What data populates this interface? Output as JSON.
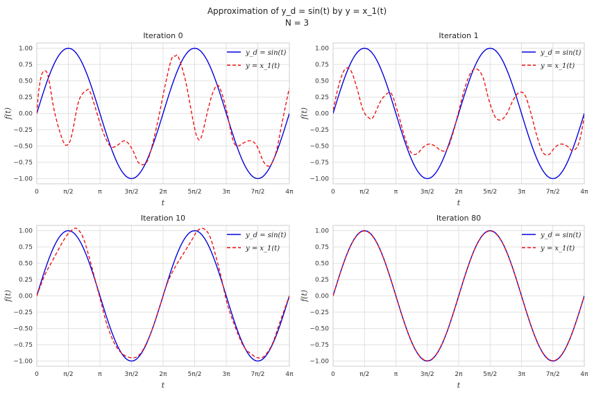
{
  "figure": {
    "title_line1": "Approximation of y_d = sin(t) by y = x_1(t)",
    "title_line2": "N = 3"
  },
  "colors": {
    "target": "#0000dd",
    "approx": "#ee1111",
    "grid": "#d9d9d9"
  },
  "chart_data": [
    {
      "type": "line",
      "title": "Iteration 0",
      "xlabel": "t",
      "ylabel": "f(t)",
      "xlim": [
        0,
        12.566
      ],
      "ylim": [
        -1.08,
        1.08
      ],
      "xticks": [
        0,
        1.5708,
        3.1416,
        4.7124,
        6.2832,
        7.854,
        9.4248,
        10.9956,
        12.5664
      ],
      "xtick_labels": [
        "0",
        "π/2",
        "π",
        "3π/2",
        "2π",
        "5π/2",
        "3π",
        "7π/2",
        "4π"
      ],
      "yticks": [
        -1.0,
        -0.75,
        -0.5,
        -0.25,
        0.0,
        0.25,
        0.5,
        0.75,
        1.0
      ],
      "ytick_labels": [
        "−1.00",
        "−0.75",
        "−0.50",
        "−0.25",
        "0.00",
        "0.25",
        "0.50",
        "0.75",
        "1.00"
      ],
      "legend_position": "top-right",
      "series": [
        {
          "name": "y_d = sin(t)",
          "style": "solid",
          "func": "sin"
        },
        {
          "name": "y = x_1(t)",
          "style": "dashed",
          "x": [
            0,
            0.1,
            0.25,
            0.45,
            0.6,
            0.9,
            1.3,
            1.55,
            1.75,
            2.1,
            2.5,
            2.65,
            2.85,
            3.2,
            3.5,
            3.75,
            4.05,
            4.4,
            4.75,
            5.05,
            5.35,
            5.6,
            6.0,
            6.4,
            6.7,
            6.9,
            7.05,
            7.4,
            7.8,
            8.0,
            8.2,
            8.55,
            8.8,
            9.05,
            9.4,
            9.75,
            10.0,
            10.3,
            10.65,
            10.95,
            11.3,
            11.6,
            11.9,
            12.2,
            12.5,
            12.566
          ],
          "y": [
            0.0,
            0.35,
            0.6,
            0.65,
            0.52,
            0.0,
            -0.42,
            -0.48,
            -0.32,
            0.2,
            0.36,
            0.33,
            0.15,
            -0.2,
            -0.43,
            -0.52,
            -0.48,
            -0.42,
            -0.55,
            -0.75,
            -0.78,
            -0.65,
            -0.15,
            0.45,
            0.83,
            0.88,
            0.86,
            0.5,
            -0.15,
            -0.38,
            -0.35,
            0.1,
            0.35,
            0.42,
            0.1,
            -0.4,
            -0.5,
            -0.45,
            -0.42,
            -0.5,
            -0.75,
            -0.8,
            -0.6,
            -0.15,
            0.3,
            0.38
          ]
        }
      ]
    },
    {
      "type": "line",
      "title": "Iteration 1",
      "xlabel": "t",
      "ylabel": "f(t)",
      "xlim": [
        0,
        12.566
      ],
      "ylim": [
        -1.08,
        1.08
      ],
      "xticks": [
        0,
        1.5708,
        3.1416,
        4.7124,
        6.2832,
        7.854,
        9.4248,
        10.9956,
        12.5664
      ],
      "xtick_labels": [
        "0",
        "π/2",
        "π",
        "3π/2",
        "2π",
        "5π/2",
        "3π",
        "7π/2",
        "4π"
      ],
      "yticks": [
        -1.0,
        -0.75,
        -0.5,
        -0.25,
        0.0,
        0.25,
        0.5,
        0.75,
        1.0
      ],
      "ytick_labels": [
        "−1.00",
        "−0.75",
        "−0.50",
        "−0.25",
        "0.00",
        "0.25",
        "0.50",
        "0.75",
        "1.00"
      ],
      "legend_position": "top-right",
      "series": [
        {
          "name": "y_d = sin(t)",
          "style": "solid",
          "func": "sin"
        },
        {
          "name": "y = x_1(t)",
          "style": "dashed",
          "x": [
            0,
            0.3,
            0.6,
            0.9,
            1.2,
            1.5,
            1.8,
            2.0,
            2.4,
            2.8,
            3.0,
            3.3,
            3.6,
            3.9,
            4.2,
            4.5,
            4.8,
            5.1,
            5.4,
            5.7,
            6.0,
            6.3,
            6.6,
            6.9,
            7.2,
            7.5,
            7.8,
            8.1,
            8.4,
            8.7,
            9.0,
            9.3,
            9.6,
            9.9,
            10.2,
            10.5,
            10.8,
            11.1,
            11.4,
            11.7,
            12.0,
            12.3,
            12.566
          ],
          "y": [
            0.05,
            0.45,
            0.68,
            0.65,
            0.38,
            0.05,
            -0.07,
            -0.06,
            0.2,
            0.32,
            0.25,
            -0.05,
            -0.38,
            -0.6,
            -0.62,
            -0.52,
            -0.47,
            -0.5,
            -0.57,
            -0.55,
            -0.3,
            0.05,
            0.4,
            0.63,
            0.68,
            0.55,
            0.2,
            -0.05,
            -0.1,
            0.0,
            0.2,
            0.32,
            0.28,
            0.0,
            -0.35,
            -0.6,
            -0.63,
            -0.52,
            -0.47,
            -0.5,
            -0.57,
            -0.45,
            -0.05
          ]
        }
      ]
    },
    {
      "type": "line",
      "title": "Iteration 10",
      "xlabel": "t",
      "ylabel": "f(t)",
      "xlim": [
        0,
        12.566
      ],
      "ylim": [
        -1.08,
        1.08
      ],
      "xticks": [
        0,
        1.5708,
        3.1416,
        4.7124,
        6.2832,
        7.854,
        9.4248,
        10.9956,
        12.5664
      ],
      "xtick_labels": [
        "0",
        "π/2",
        "π",
        "3π/2",
        "2π",
        "5π/2",
        "3π",
        "7π/2",
        "4π"
      ],
      "yticks": [
        -1.0,
        -0.75,
        -0.5,
        -0.25,
        0.0,
        0.25,
        0.5,
        0.75,
        1.0
      ],
      "ytick_labels": [
        "−1.00",
        "−0.75",
        "−0.50",
        "−0.25",
        "0.00",
        "0.25",
        "0.50",
        "0.75",
        "1.00"
      ],
      "legend_position": "top-right",
      "series": [
        {
          "name": "y_d = sin(t)",
          "style": "solid",
          "func": "sin"
        },
        {
          "name": "y = x_1(t)",
          "style": "dashed",
          "x": [
            0,
            0.4,
            0.8,
            1.2,
            1.5,
            1.8,
            2.0,
            2.3,
            2.6,
            2.9,
            3.2,
            3.5,
            3.9,
            4.3,
            4.7,
            5.0,
            5.3,
            5.7,
            6.1,
            6.5,
            6.9,
            7.3,
            7.7,
            8.0,
            8.3,
            8.6,
            8.9,
            9.2,
            9.5,
            9.9,
            10.3,
            10.7,
            11.0,
            11.3,
            11.7,
            12.1,
            12.566
          ],
          "y": [
            0.0,
            0.32,
            0.55,
            0.78,
            0.93,
            1.02,
            1.03,
            0.9,
            0.6,
            0.25,
            -0.1,
            -0.45,
            -0.75,
            -0.9,
            -0.95,
            -0.93,
            -0.82,
            -0.55,
            -0.18,
            0.2,
            0.45,
            0.65,
            0.85,
            1.0,
            1.03,
            0.92,
            0.62,
            0.25,
            -0.15,
            -0.5,
            -0.78,
            -0.9,
            -0.95,
            -0.93,
            -0.75,
            -0.4,
            0.0
          ]
        }
      ]
    },
    {
      "type": "line",
      "title": "Iteration 80",
      "xlabel": "t",
      "ylabel": "f(t)",
      "xlim": [
        0,
        12.566
      ],
      "ylim": [
        -1.08,
        1.08
      ],
      "xticks": [
        0,
        1.5708,
        3.1416,
        4.7124,
        6.2832,
        7.854,
        9.4248,
        10.9956,
        12.5664
      ],
      "xtick_labels": [
        "0",
        "π/2",
        "π",
        "3π/2",
        "2π",
        "5π/2",
        "3π",
        "7π/2",
        "4π"
      ],
      "yticks": [
        -1.0,
        -0.75,
        -0.5,
        -0.25,
        0.0,
        0.25,
        0.5,
        0.75,
        1.0
      ],
      "ytick_labels": [
        "−1.00",
        "−0.75",
        "−0.50",
        "−0.25",
        "0.00",
        "0.25",
        "0.50",
        "0.75",
        "1.00"
      ],
      "legend_position": "top-right",
      "series": [
        {
          "name": "y_d = sin(t)",
          "style": "solid",
          "func": "sin"
        },
        {
          "name": "y = x_1(t)",
          "style": "dashed",
          "func": "sin_approx"
        }
      ]
    }
  ]
}
